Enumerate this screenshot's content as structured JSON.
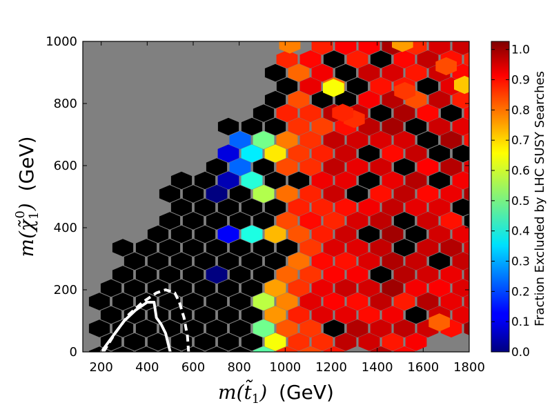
{
  "chart_data": {
    "type": "heatmap",
    "title": "",
    "xlabel": "(GeV)",
    "xlabel_math": "m(t̃1)",
    "ylabel": "(GeV)",
    "ylabel_math": "m(χ̃₁⁰)",
    "xlim": [
      120,
      1800
    ],
    "ylim": [
      0,
      1000
    ],
    "x_ticks": [
      "200",
      "400",
      "600",
      "800",
      "1000",
      "1200",
      "1400",
      "1600",
      "1800"
    ],
    "x_tick_values": [
      200,
      400,
      600,
      800,
      1000,
      1200,
      1400,
      1600,
      1800
    ],
    "y_ticks": [
      "0",
      "200",
      "400",
      "600",
      "800",
      "1000"
    ],
    "y_tick_values": [
      0,
      200,
      400,
      600,
      800,
      1000
    ],
    "colorbar": {
      "label": "Fraction Excluded by LHC SUSY Searches",
      "range": [
        0.0,
        1.0
      ],
      "ticks": [
        "0.0",
        "0.1",
        "0.2",
        "0.3",
        "0.4",
        "0.5",
        "0.6",
        "0.7",
        "0.8",
        "0.9",
        "1.0"
      ],
      "tick_values": [
        0.0,
        0.1,
        0.2,
        0.3,
        0.4,
        0.5,
        0.6,
        0.7,
        0.8,
        0.9,
        1.0
      ],
      "colormap": "jet"
    },
    "background_color": "#808080",
    "empty_bin_color": "#000000",
    "hexbin": {
      "x_step": 34,
      "y_step": 19.5,
      "region": {
        "lower_mass_diagonal": [
          [
            100,
            200
          ],
          [
            1000,
            1000
          ]
        ],
        "description_points_x": [
          150,
          1800
        ],
        "max_y": 1000
      },
      "zero_region_lower_envelope": [
        [
          200,
          0
        ],
        [
          600,
          0
        ],
        [
          700,
          120
        ],
        [
          800,
          200
        ],
        [
          900,
          300
        ],
        [
          1000,
          400
        ]
      ],
      "fraction_gradient": {
        "x": [
          700,
          1000,
          1200,
          1400,
          1600,
          1800
        ],
        "mean_fraction": [
          0.0,
          0.85,
          0.95,
          0.97,
          0.97,
          0.98
        ]
      },
      "highlight_bins": [
        {
          "x": 1020,
          "y": 990,
          "value": 0.75
        },
        {
          "x": 1210,
          "y": 850,
          "value": 0.62
        },
        {
          "x": 1510,
          "y": 995,
          "value": 0.72
        },
        {
          "x": 1780,
          "y": 860,
          "value": 0.68
        },
        {
          "x": 1700,
          "y": 920,
          "value": 0.8
        },
        {
          "x": 1670,
          "y": 95,
          "value": 0.78
        },
        {
          "x": 1520,
          "y": 840,
          "value": 0.82
        },
        {
          "x": 1300,
          "y": 750,
          "value": 0.83
        },
        {
          "x": 1250,
          "y": 770,
          "value": 0.84
        }
      ]
    },
    "contours": [
      {
        "style": "solid",
        "color": "#ffffff",
        "points": [
          [
            200,
            0
          ],
          [
            250,
            50
          ],
          [
            300,
            100
          ],
          [
            350,
            135
          ],
          [
            400,
            160
          ],
          [
            430,
            160
          ],
          [
            440,
            110
          ],
          [
            460,
            90
          ],
          [
            480,
            60
          ],
          [
            490,
            30
          ],
          [
            500,
            0
          ]
        ]
      },
      {
        "style": "dashed",
        "color": "#ffffff",
        "points": [
          [
            210,
            0
          ],
          [
            260,
            60
          ],
          [
            320,
            120
          ],
          [
            380,
            160
          ],
          [
            440,
            190
          ],
          [
            480,
            200
          ],
          [
            520,
            190
          ],
          [
            540,
            160
          ],
          [
            560,
            110
          ],
          [
            575,
            50
          ],
          [
            580,
            0
          ]
        ]
      }
    ]
  }
}
